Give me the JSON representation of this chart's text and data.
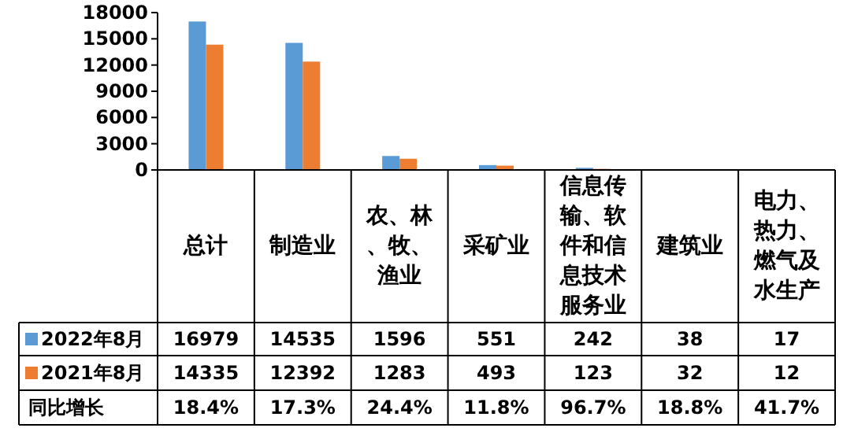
{
  "chart_data": {
    "type": "bar",
    "categories": [
      "总计",
      "制造业",
      "农、林、牧、渔业",
      "采矿业",
      "信息传输、软件和信息技术服务业",
      "建筑业",
      "电力、热力、燃气及水生产"
    ],
    "series": [
      {
        "name": "2022年8月",
        "color": "#5b9bd5",
        "values": [
          16979,
          14535,
          1596,
          551,
          242,
          38,
          17
        ]
      },
      {
        "name": "2021年8月",
        "color": "#ed7d31",
        "values": [
          14335,
          12392,
          1283,
          493,
          123,
          32,
          12
        ]
      }
    ],
    "ylim": [
      0,
      18000
    ],
    "yticks": [
      0,
      3000,
      6000,
      9000,
      12000,
      15000,
      18000
    ],
    "data_labels": true,
    "legend": "bottom",
    "annotations": [
      "同比增长",
      "18.4%",
      "17.3%",
      "24.4%",
      "11.8%",
      "96.7%",
      "18.8%",
      "41.7%"
    ]
  }
}
